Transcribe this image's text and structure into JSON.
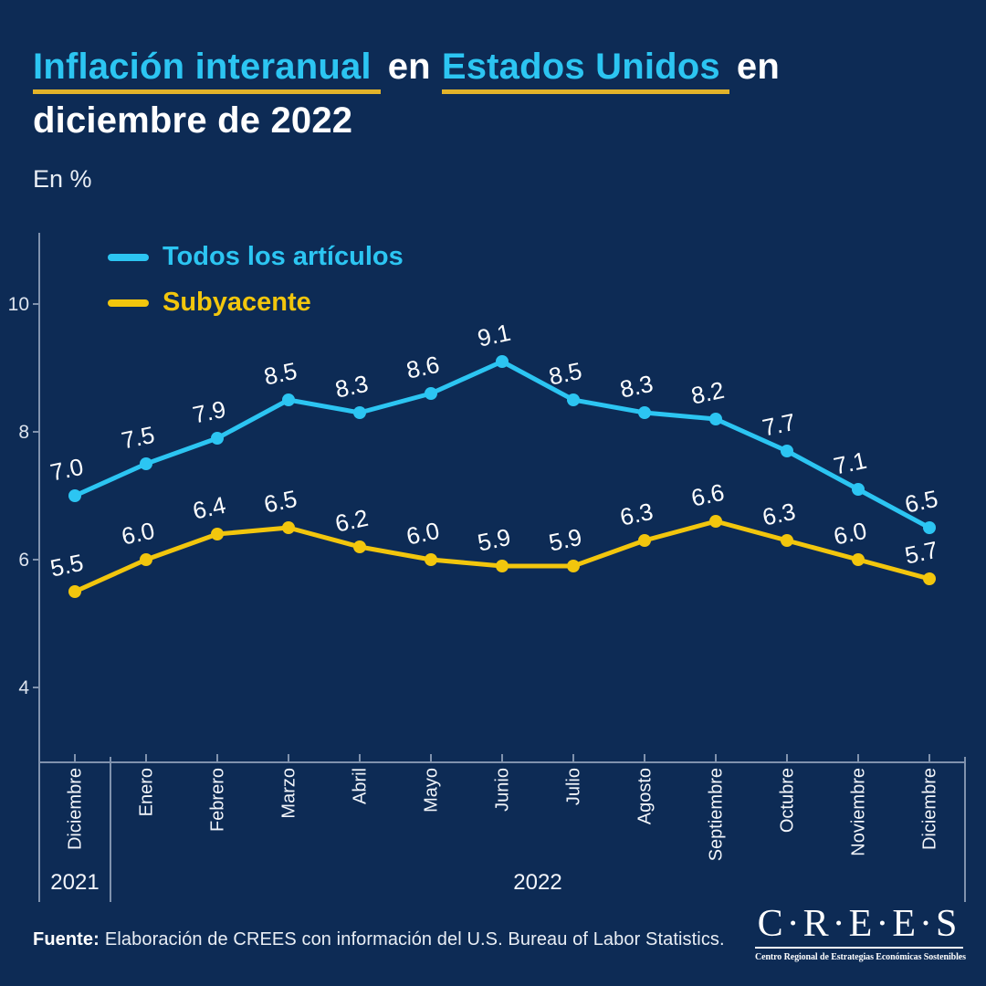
{
  "title": {
    "segment1": "Inflación interanual",
    "connector1": "en",
    "segment2": "Estados Unidos",
    "connector2": "en",
    "line2": "diciembre de 2022"
  },
  "unit_label": "En %",
  "legend": [
    {
      "label": "Todos los artículos",
      "color": "#2cc5f2"
    },
    {
      "label": "Subyacente",
      "color": "#f2c60d"
    }
  ],
  "chart_data": {
    "type": "line",
    "x": [
      "Diciembre",
      "Enero",
      "Febrero",
      "Marzo",
      "Abril",
      "Mayo",
      "Junio",
      "Julio",
      "Agosto",
      "Septiembre",
      "Octubre",
      "Noviembre",
      "Diciembre"
    ],
    "x_year_groups": [
      {
        "label": "2021",
        "count": 1
      },
      {
        "label": "2022",
        "count": 12
      }
    ],
    "series": [
      {
        "name": "Todos los artículos",
        "color": "#2cc5f2",
        "values": [
          7.0,
          7.5,
          7.9,
          8.5,
          8.3,
          8.6,
          9.1,
          8.5,
          8.3,
          8.2,
          7.7,
          7.1,
          6.5
        ]
      },
      {
        "name": "Subyacente",
        "color": "#f2c60d",
        "values": [
          5.5,
          6.0,
          6.4,
          6.5,
          6.2,
          6.0,
          5.9,
          5.9,
          6.3,
          6.6,
          6.3,
          6.0,
          5.7
        ]
      }
    ],
    "y_ticks": [
      4,
      6,
      8,
      10
    ],
    "ylim": [
      3,
      11
    ],
    "ylabel": "En %",
    "value_label_decimals": 1,
    "grid": false,
    "legend_position": "top-left"
  },
  "footer": {
    "source_bold": "Fuente:",
    "source_text": "Elaboración de CREES con información del U.S. Bureau of Labor Statistics."
  },
  "logo": {
    "name": "C·R·E·E·S",
    "subtitle": "Centro Regional de Estrategias Económicas Sostenibles"
  },
  "colors": {
    "background": "#0d2b55",
    "accent_cyan": "#2cc5f2",
    "accent_yellow": "#f2c60d",
    "underline_gold": "#e2b32a",
    "axis": "#8092ad",
    "tick_text": "#dde4ee",
    "month_text": "#f2f5fa",
    "value_text": "#ffffff",
    "text_white": "#ffffff",
    "text_soft": "#e9eef5"
  }
}
